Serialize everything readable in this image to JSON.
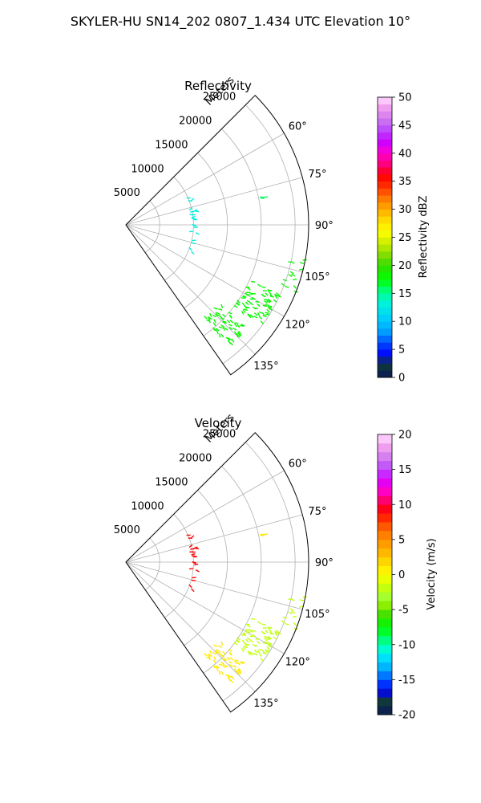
{
  "figure": {
    "suptitle": "SKYLER-HU  SN14_202  0807_1.434 UTC Elevation 10°"
  },
  "chart_data": [
    {
      "type": "polar-sector-scatter",
      "title": "Reflectivity",
      "radial_label": "Meters",
      "range_ticks": [
        5000,
        10000,
        15000,
        20000,
        25000
      ],
      "rmax": 27000,
      "theta_range_deg": [
        45,
        145
      ],
      "theta_ticks": [
        60,
        75,
        90,
        105,
        120,
        135
      ],
      "theta_tick_labels": [
        "60°",
        "75°",
        "90°",
        "105°",
        "120°",
        "135°"
      ],
      "grid": true,
      "colorbar": {
        "label": "Reflectivity dBZ",
        "range": [
          0,
          50
        ],
        "ticks": [
          0,
          5,
          10,
          15,
          20,
          25,
          30,
          35,
          40,
          45,
          50
        ],
        "levels": 40,
        "color_stops": [
          [
            0,
            "#0a1a55"
          ],
          [
            2.5,
            "#103a3a"
          ],
          [
            4,
            "#0000ff"
          ],
          [
            6,
            "#0044ff"
          ],
          [
            8,
            "#0099ff"
          ],
          [
            10,
            "#00c8ff"
          ],
          [
            13,
            "#00f0e0"
          ],
          [
            15,
            "#00ff99"
          ],
          [
            17.5,
            "#00ff00"
          ],
          [
            20,
            "#33dd00"
          ],
          [
            22,
            "#88dd00"
          ],
          [
            24,
            "#ccee00"
          ],
          [
            26,
            "#ffff00"
          ],
          [
            28,
            "#ffdd00"
          ],
          [
            30,
            "#ffaa00"
          ],
          [
            32,
            "#ff7700"
          ],
          [
            34,
            "#ff3300"
          ],
          [
            36,
            "#ff0000"
          ],
          [
            38,
            "#ff0077"
          ],
          [
            40,
            "#ff00cc"
          ],
          [
            42,
            "#cc00ff"
          ],
          [
            44,
            "#bb44ff"
          ],
          [
            46,
            "#cc77ee"
          ],
          [
            48,
            "#ee99ee"
          ],
          [
            50,
            "#ffddff"
          ]
        ]
      },
      "clusters": [
        {
          "azimuth_deg": [
            66,
            113
          ],
          "range_m": [
            9700,
            10800
          ],
          "value": 13,
          "count": 22
        },
        {
          "azimuth_deg": [
            78,
            80
          ],
          "range_m": [
            20500,
            21300
          ],
          "value": 16,
          "count": 3
        },
        {
          "azimuth_deg": [
            101,
            112
          ],
          "range_m": [
            24500,
            27000
          ],
          "value": 18,
          "count": 14
        },
        {
          "azimuth_deg": [
            114,
            127
          ],
          "range_m": [
            20000,
            25000
          ],
          "value": 18,
          "count": 70
        },
        {
          "azimuth_deg": [
            130,
            140
          ],
          "range_m": [
            18000,
            23500
          ],
          "value": 18,
          "count": 55
        }
      ]
    },
    {
      "type": "polar-sector-scatter",
      "title": "Velocity",
      "radial_label": "Meters",
      "range_ticks": [
        5000,
        10000,
        15000,
        20000,
        25000
      ],
      "rmax": 27000,
      "theta_range_deg": [
        45,
        145
      ],
      "theta_ticks": [
        60,
        75,
        90,
        105,
        120,
        135
      ],
      "theta_tick_labels": [
        "60°",
        "75°",
        "90°",
        "105°",
        "120°",
        "135°"
      ],
      "grid": true,
      "colorbar": {
        "label": "Velocity (m/s)",
        "range": [
          -20,
          20
        ],
        "ticks": [
          -20,
          -15,
          -10,
          -5,
          0,
          5,
          10,
          15,
          20
        ],
        "levels": 32,
        "color_stops": [
          [
            -20,
            "#0a1a55"
          ],
          [
            -18,
            "#103a3a"
          ],
          [
            -16.5,
            "#0000ff"
          ],
          [
            -15,
            "#0055ff"
          ],
          [
            -13.5,
            "#00aaff"
          ],
          [
            -12,
            "#00ddff"
          ],
          [
            -10.5,
            "#00ffcc"
          ],
          [
            -9,
            "#00ff66"
          ],
          [
            -7.5,
            "#00ff00"
          ],
          [
            -6,
            "#33dd00"
          ],
          [
            -4.5,
            "#88ee00"
          ],
          [
            -3,
            "#aaff33"
          ],
          [
            -1.5,
            "#ccff00"
          ],
          [
            0,
            "#ffff00"
          ],
          [
            1.5,
            "#ffdd00"
          ],
          [
            3,
            "#ffbb00"
          ],
          [
            4.5,
            "#ff9900"
          ],
          [
            6,
            "#ff7700"
          ],
          [
            7.5,
            "#ff4400"
          ],
          [
            9,
            "#ff0000"
          ],
          [
            10.5,
            "#ff0066"
          ],
          [
            12,
            "#ff00cc"
          ],
          [
            13.5,
            "#dd00ff"
          ],
          [
            15,
            "#bb44ff"
          ],
          [
            16.5,
            "#cc77ee"
          ],
          [
            18,
            "#ee99ee"
          ],
          [
            20,
            "#ffddff"
          ]
        ]
      },
      "clusters": [
        {
          "azimuth_deg": [
            66,
            113
          ],
          "range_m": [
            9700,
            10800
          ],
          "value": 9,
          "count": 22
        },
        {
          "azimuth_deg": [
            78,
            80
          ],
          "range_m": [
            20500,
            21300
          ],
          "value": 1,
          "count": 3
        },
        {
          "azimuth_deg": [
            101,
            112
          ],
          "range_m": [
            24500,
            27000
          ],
          "value": -2,
          "count": 14
        },
        {
          "azimuth_deg": [
            114,
            127
          ],
          "range_m": [
            20000,
            25000
          ],
          "value": -2,
          "count": 70
        },
        {
          "azimuth_deg": [
            130,
            140
          ],
          "range_m": [
            18000,
            23500
          ],
          "value": 1,
          "count": 55
        }
      ]
    }
  ]
}
